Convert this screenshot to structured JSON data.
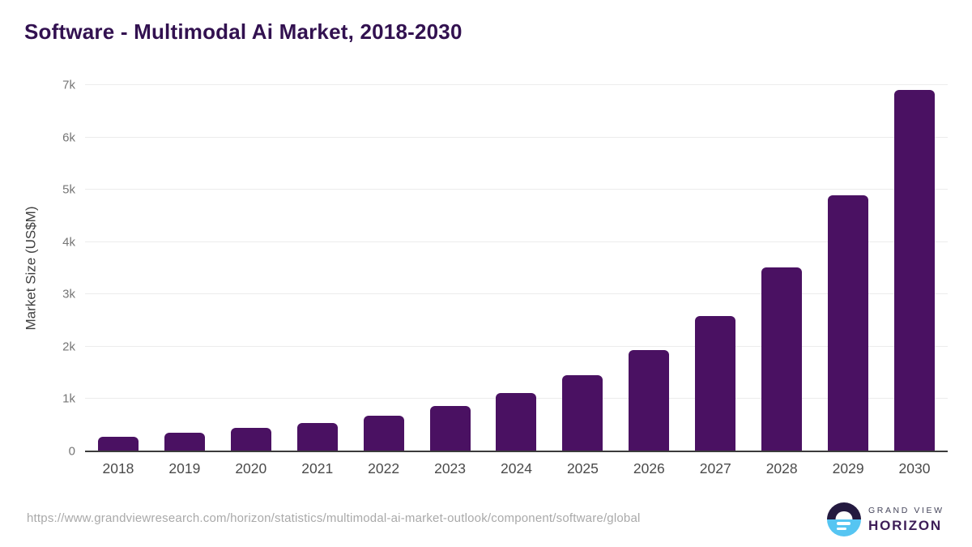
{
  "page": {
    "title": "Software - Multimodal Ai Market, 2018-2030",
    "source_url": "https://www.grandviewresearch.com/horizon/statistics/multimodal-ai-market-outlook/component/software/global"
  },
  "chart_data": {
    "type": "bar",
    "title": "Software - Multimodal Ai Market, 2018-2030",
    "categories": [
      "2018",
      "2019",
      "2020",
      "2021",
      "2022",
      "2023",
      "2024",
      "2025",
      "2026",
      "2027",
      "2028",
      "2029",
      "2030"
    ],
    "values": [
      275,
      360,
      445,
      545,
      680,
      860,
      1110,
      1450,
      1930,
      2585,
      3520,
      4895,
      6900
    ],
    "xlabel": "",
    "ylabel": "Market Size (US$M)",
    "ylim": [
      0,
      7000
    ],
    "ytick_values": [
      0,
      1000,
      2000,
      3000,
      4000,
      5000,
      6000,
      7000
    ],
    "ytick_labels": [
      "0",
      "1k",
      "2k",
      "3k",
      "4k",
      "5k",
      "6k",
      "7k"
    ],
    "grid": "horizontal",
    "legend_position": "none",
    "bar_color": "#4a1162",
    "gridline_color": "#ececec",
    "axis_color": "#3b3b3b"
  },
  "branding": {
    "logo_top_label": "GRAND VIEW",
    "logo_bottom_label": "HORIZON",
    "logo_dark_color": "#241a40",
    "logo_blue_color": "#56c5f2"
  }
}
